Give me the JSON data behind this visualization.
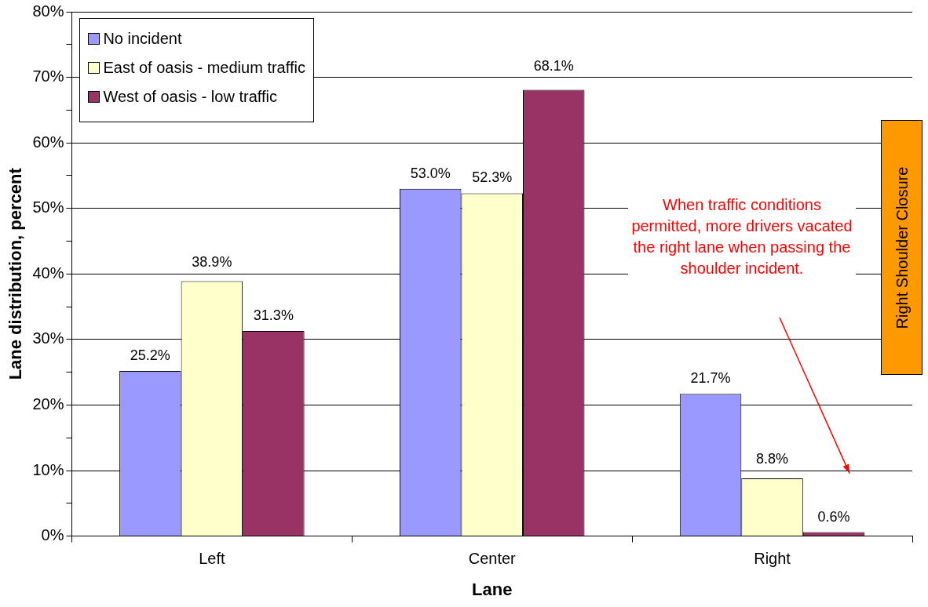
{
  "chart_data": {
    "type": "bar",
    "xlabel": "Lane",
    "ylabel": "Lane distribution, percent",
    "categories": [
      "Left",
      "Center",
      "Right"
    ],
    "series": [
      {
        "name": "No incident",
        "color": "#9999ff",
        "values": [
          25.2,
          53.0,
          21.7
        ],
        "value_labels": [
          "25.2%",
          "53.0%",
          "21.7%"
        ]
      },
      {
        "name": "East of oasis - medium traffic",
        "color": "#ffffcc",
        "values": [
          38.9,
          52.3,
          8.8
        ],
        "value_labels": [
          "38.9%",
          "52.3%",
          "8.8%"
        ]
      },
      {
        "name": "West of oasis - low traffic",
        "color": "#993366",
        "values": [
          31.3,
          68.1,
          0.6
        ],
        "value_labels": [
          "31.3%",
          "68.1%",
          "0.6%"
        ]
      }
    ],
    "ylim": [
      0,
      80
    ],
    "yticks": [
      {
        "value": 0,
        "label": "0%"
      },
      {
        "value": 5,
        "label": null
      },
      {
        "value": 10,
        "label": "10%"
      },
      {
        "value": 15,
        "label": null
      },
      {
        "value": 20,
        "label": "20%"
      },
      {
        "value": 25,
        "label": null
      },
      {
        "value": 30,
        "label": "30%"
      },
      {
        "value": 35,
        "label": null
      },
      {
        "value": 40,
        "label": "40%"
      },
      {
        "value": 45,
        "label": null
      },
      {
        "value": 50,
        "label": "50%"
      },
      {
        "value": 55,
        "label": null
      },
      {
        "value": 60,
        "label": "60%"
      },
      {
        "value": 65,
        "label": null
      },
      {
        "value": 70,
        "label": "70%"
      },
      {
        "value": 75,
        "label": null
      },
      {
        "value": 80,
        "label": "80%"
      }
    ],
    "grid": "y",
    "legend": "top left",
    "annotations": [
      "When traffic conditions permitted, more drivers vacated the right lane when passing the shoulder incident.",
      "Right Shoulder Closure"
    ]
  }
}
